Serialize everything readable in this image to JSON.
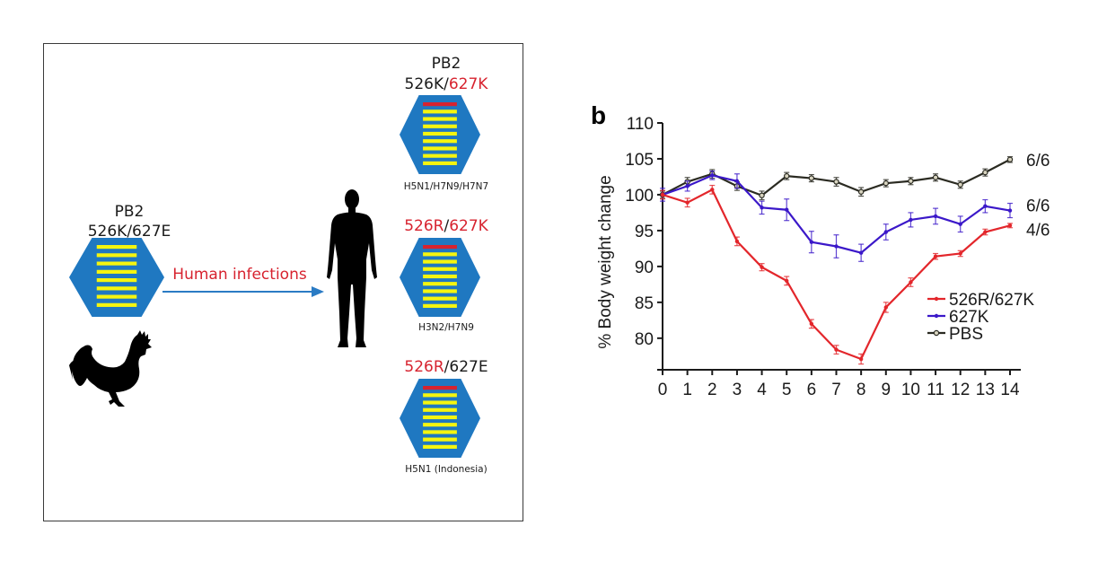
{
  "panel_a": {
    "source": {
      "title": "PB2",
      "mutation_parts": [
        {
          "text": "526K/627E",
          "highlight": false
        }
      ],
      "red_bar": false
    },
    "arrow_label": "Human infections",
    "variants": [
      {
        "title": "PB2",
        "mutation_parts": [
          {
            "text": "526K/",
            "highlight": false
          },
          {
            "text": "627K",
            "highlight": true
          }
        ],
        "strains": "H5N1/H7N9/H7N7",
        "red_bar": true
      },
      {
        "title": "",
        "mutation_parts": [
          {
            "text": "526R",
            "highlight": true
          },
          {
            "text": "/",
            "highlight": false
          },
          {
            "text": "627K",
            "highlight": true
          }
        ],
        "strains": "H3N2/H7N9",
        "red_bar": true
      },
      {
        "title": "",
        "mutation_parts": [
          {
            "text": "526R",
            "highlight": true
          },
          {
            "text": "/627E",
            "highlight": false
          }
        ],
        "strains": "H5N1 (Indonesia)",
        "red_bar": true
      }
    ],
    "icons": {
      "rooster": "rooster-silhouette-icon",
      "human": "human-silhouette-icon",
      "segment": "hexagon-polymerase-icon"
    },
    "colors": {
      "hexagon": "#1f78c1",
      "stripe": "#f5f50f",
      "highlight": "#d7232f",
      "arrow": "#2a7bc4"
    }
  },
  "chart_data": {
    "type": "line",
    "panel_label": "b",
    "title": "",
    "xlabel": "",
    "ylabel": "% Body weight change",
    "x": [
      0,
      1,
      2,
      3,
      4,
      5,
      6,
      7,
      8,
      9,
      10,
      11,
      12,
      13,
      14
    ],
    "x_ticks": [
      "0",
      "1",
      "2",
      "3",
      "4",
      "5",
      "6",
      "7",
      "8",
      "9",
      "10",
      "11",
      "12",
      "13",
      "14"
    ],
    "y_ticks": [
      80,
      85,
      90,
      95,
      100,
      105,
      110
    ],
    "ylim": [
      75.6,
      110
    ],
    "xlim": [
      0,
      14.3
    ],
    "grid": false,
    "legend_position": "bottom-right",
    "series": [
      {
        "name": "526R/627K",
        "color": "#e3262b",
        "marker": "filled-circle",
        "values": [
          100,
          98.9,
          100.7,
          93.5,
          89.9,
          88.0,
          82.0,
          78.4,
          77.1,
          84.3,
          87.8,
          91.4,
          91.8,
          94.8,
          95.7
        ],
        "errors": [
          0.6,
          0.6,
          0.6,
          0.6,
          0.5,
          0.6,
          0.6,
          0.6,
          0.7,
          0.7,
          0.6,
          0.4,
          0.4,
          0.4,
          0.3
        ],
        "survival": "4/6"
      },
      {
        "name": "627K",
        "color": "#3b18c9",
        "marker": "filled-circle",
        "values": [
          100,
          101.2,
          102.7,
          101.9,
          98.2,
          97.9,
          93.4,
          92.8,
          91.9,
          94.8,
          96.5,
          97.0,
          95.9,
          98.4,
          97.8
        ],
        "errors": [
          0.9,
          0.7,
          0.6,
          1.0,
          0.9,
          1.5,
          1.5,
          1.6,
          1.2,
          1.1,
          1.0,
          1.1,
          1.1,
          0.9,
          1.0
        ],
        "survival": "6/6"
      },
      {
        "name": "PBS",
        "color": "#2b2b22",
        "marker": "open-circle",
        "values": [
          100,
          101.8,
          102.9,
          101.2,
          99.9,
          102.6,
          102.3,
          101.8,
          100.4,
          101.6,
          101.9,
          102.4,
          101.4,
          103.1,
          104.9
        ],
        "errors": [
          0.5,
          0.6,
          0.6,
          0.6,
          0.6,
          0.5,
          0.5,
          0.6,
          0.6,
          0.5,
          0.5,
          0.5,
          0.5,
          0.5,
          0.4
        ],
        "survival": "6/6"
      }
    ]
  }
}
